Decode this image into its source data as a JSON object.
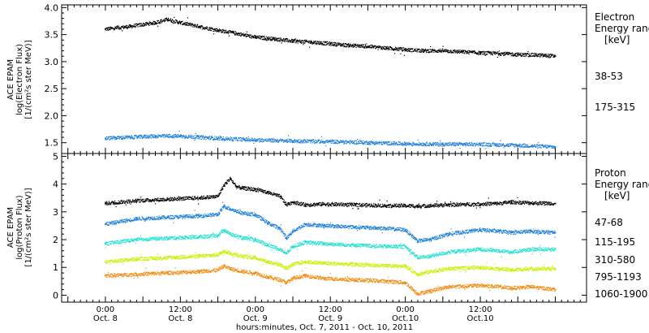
{
  "chart_data": [
    {
      "type": "scatter",
      "panel": "electron",
      "ylabel_lines": [
        "ACE EPAM",
        "log(Electron Flux)",
        "[1/(cm²s ster MeV)]"
      ],
      "ylim": [
        1.3,
        4.05
      ],
      "yticks": [
        1.5,
        2.0,
        2.5,
        3.0,
        3.5,
        4.0
      ],
      "ytick_labels": [
        "1.5",
        "2.0",
        "2.5",
        "3.0",
        "3.5",
        "4.0"
      ],
      "legend_title_lines": [
        "Electron",
        "Energy ranges",
        "[keV]"
      ],
      "series": [
        {
          "name": "38-53",
          "color": "#000000",
          "hours": [
            0,
            8,
            16,
            20,
            24,
            30,
            36,
            42,
            48,
            54,
            60,
            66,
            72,
            78,
            84,
            90,
            96,
            102,
            108,
            114,
            120,
            126,
            132,
            138,
            144
          ],
          "values": [
            3.6,
            3.65,
            3.72,
            3.78,
            3.72,
            3.65,
            3.58,
            3.52,
            3.45,
            3.42,
            3.38,
            3.36,
            3.33,
            3.3,
            3.28,
            3.25,
            3.22,
            3.2,
            3.2,
            3.18,
            3.16,
            3.15,
            3.13,
            3.12,
            3.1
          ]
        },
        {
          "name": "175-315",
          "color": "#1e7fd8",
          "hours": [
            0,
            8,
            16,
            24,
            36,
            48,
            60,
            72,
            84,
            96,
            108,
            120,
            132,
            144
          ],
          "values": [
            1.58,
            1.6,
            1.62,
            1.62,
            1.58,
            1.55,
            1.53,
            1.52,
            1.5,
            1.48,
            1.47,
            1.47,
            1.45,
            1.42
          ]
        }
      ]
    },
    {
      "type": "scatter",
      "panel": "proton",
      "ylabel_lines": [
        "ACE EPAM",
        "log(Proton Flux)",
        "[1/(cm²s ster MeV)]"
      ],
      "ylim": [
        -0.25,
        5.1
      ],
      "yticks": [
        0,
        1,
        2,
        3,
        4,
        5
      ],
      "ytick_labels": [
        "0",
        "1",
        "2",
        "3",
        "4",
        "5"
      ],
      "legend_title_lines": [
        "Proton",
        "Energy ranges",
        "[keV]"
      ],
      "series": [
        {
          "name": "47-68",
          "color": "#000000",
          "hours": [
            0,
            10,
            20,
            30,
            36,
            38,
            40,
            42,
            44,
            48,
            52,
            56,
            58,
            60,
            64,
            70,
            80,
            90,
            96,
            100,
            104,
            110,
            120,
            126,
            130,
            136,
            144
          ],
          "values": [
            3.3,
            3.4,
            3.45,
            3.5,
            3.55,
            3.95,
            4.2,
            3.9,
            3.85,
            3.8,
            3.7,
            3.55,
            3.25,
            3.35,
            3.25,
            3.28,
            3.25,
            3.22,
            3.22,
            3.2,
            3.22,
            3.25,
            3.28,
            3.3,
            3.35,
            3.32,
            3.3
          ]
        },
        {
          "name": "115-195",
          "color": "#1e7fd8",
          "hours": [
            0,
            10,
            20,
            30,
            36,
            38,
            40,
            44,
            48,
            52,
            56,
            58,
            60,
            64,
            70,
            80,
            90,
            96,
            100,
            104,
            110,
            120,
            126,
            130,
            136,
            144
          ],
          "values": [
            2.55,
            2.75,
            2.8,
            2.85,
            2.9,
            3.2,
            3.1,
            2.95,
            2.9,
            2.6,
            2.4,
            2.05,
            2.3,
            2.55,
            2.5,
            2.45,
            2.4,
            2.35,
            1.95,
            2.0,
            2.2,
            2.35,
            2.3,
            2.25,
            2.3,
            2.25
          ]
        },
        {
          "name": "310-580",
          "color": "#22e0d0",
          "hours": [
            0,
            10,
            20,
            30,
            36,
            38,
            40,
            44,
            48,
            52,
            56,
            58,
            60,
            64,
            70,
            80,
            90,
            96,
            100,
            104,
            110,
            120,
            126,
            130,
            136,
            144
          ],
          "values": [
            1.85,
            2.0,
            2.05,
            2.1,
            2.15,
            2.35,
            2.2,
            2.05,
            2.0,
            1.8,
            1.65,
            1.5,
            1.75,
            1.9,
            1.85,
            1.8,
            1.75,
            1.75,
            1.35,
            1.4,
            1.55,
            1.65,
            1.6,
            1.55,
            1.65,
            1.65
          ]
        },
        {
          "name": "795-1193",
          "color": "#c8f000",
          "hours": [
            0,
            10,
            20,
            30,
            36,
            38,
            40,
            44,
            48,
            52,
            56,
            58,
            60,
            64,
            70,
            80,
            90,
            96,
            100,
            104,
            110,
            120,
            126,
            130,
            136,
            144
          ],
          "values": [
            1.2,
            1.3,
            1.35,
            1.4,
            1.45,
            1.6,
            1.5,
            1.4,
            1.35,
            1.2,
            1.1,
            0.95,
            1.1,
            1.2,
            1.15,
            1.1,
            1.05,
            1.05,
            0.75,
            0.85,
            0.95,
            1.0,
            0.95,
            0.9,
            0.95,
            0.95
          ]
        },
        {
          "name": "1060-1900",
          "color": "#f08a10",
          "hours": [
            0,
            10,
            20,
            30,
            36,
            38,
            40,
            44,
            48,
            52,
            56,
            58,
            60,
            64,
            70,
            80,
            90,
            96,
            100,
            104,
            110,
            120,
            126,
            130,
            136,
            144
          ],
          "values": [
            0.7,
            0.75,
            0.8,
            0.85,
            0.9,
            1.05,
            0.95,
            0.85,
            0.8,
            0.65,
            0.55,
            0.45,
            0.6,
            0.7,
            0.6,
            0.55,
            0.5,
            0.45,
            0.05,
            0.15,
            0.3,
            0.35,
            0.3,
            0.25,
            0.3,
            0.2
          ]
        }
      ]
    }
  ],
  "time_axis": {
    "xlim_hours": [
      -14,
      154
    ],
    "xlabel": "hours:minutes, Oct.  7, 2011 - Oct. 10, 2011",
    "major_ticks": [
      {
        "hour": 0,
        "time": "0:00",
        "date": "Oct. 8"
      },
      {
        "hour": 24,
        "time": "12:00",
        "date": "Oct. 8"
      },
      {
        "hour": 48,
        "time": "0:00",
        "date": "Oct. 9"
      },
      {
        "hour": 72,
        "time": "12:00",
        "date": "Oct. 9"
      },
      {
        "hour": 96,
        "time": "0:00",
        "date": "Oct.10"
      },
      {
        "hour": 120,
        "time": "12:00",
        "date": "Oct.10"
      }
    ]
  }
}
